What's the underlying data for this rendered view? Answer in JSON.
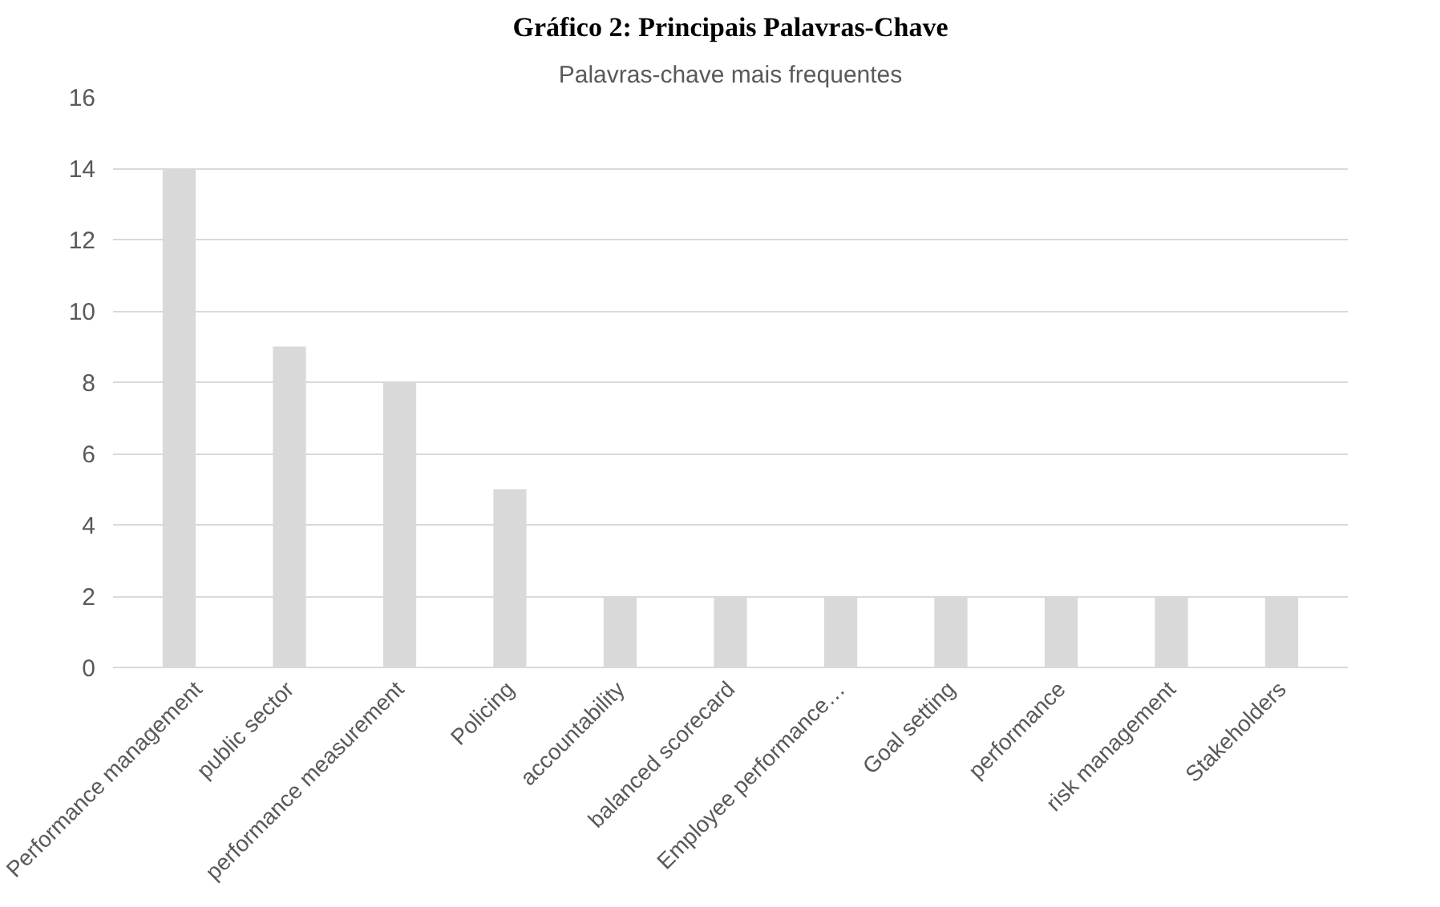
{
  "chart_data": {
    "type": "bar",
    "title": "Gráfico 2: Principais Palavras-Chave",
    "subtitle": "Palavras-chave mais frequentes",
    "categories": [
      "Performance management",
      "public sector",
      "performance measurement",
      "Policing",
      "accountability",
      "balanced scorecard",
      "Employee performance…",
      "Goal setting",
      "performance",
      "risk management",
      "Stakeholders"
    ],
    "values": [
      14,
      9,
      8,
      5,
      2,
      2,
      2,
      2,
      2,
      2,
      2
    ],
    "color": "#d9d9d9",
    "ylim": [
      0,
      16
    ],
    "yticks": [
      0,
      2,
      4,
      6,
      8,
      10,
      12,
      14,
      16
    ],
    "grid": "y"
  }
}
